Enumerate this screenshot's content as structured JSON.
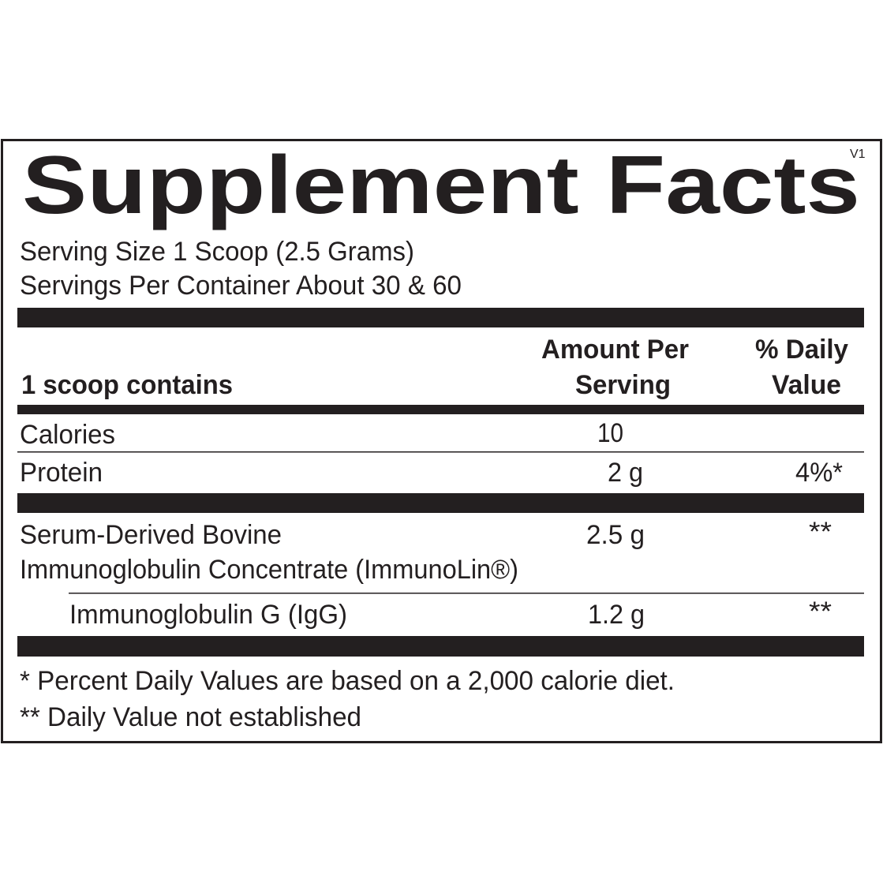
{
  "title": "Supplement Facts",
  "version": "V1",
  "serving": {
    "size": "Serving Size 1 Scoop (2.5 Grams)",
    "per_container": "Servings Per Container About 30 & 60"
  },
  "table": {
    "header": {
      "label": "1 scoop contains",
      "amount": [
        "Amount Per",
        "Serving"
      ],
      "daily_value": [
        "% Daily",
        "Value"
      ]
    },
    "rows": [
      {
        "name": [
          "Calories"
        ],
        "amount": "10"
      },
      {
        "name": [
          "Protein"
        ],
        "amount": "2 g",
        "daily_value": "4%*"
      },
      {
        "name": [
          "Serum-Derived Bovine",
          "Immunoglobulin Concentrate (ImmunoLin®)"
        ],
        "amount": "2.5 g",
        "daily_value": "**"
      },
      {
        "name": [
          "Immunoglobulin G (IgG)"
        ],
        "amount": "1.2 g",
        "daily_value": "**"
      }
    ]
  },
  "footnotes": [
    "* Percent Daily Values are based on a 2,000 calorie diet.",
    "** Daily Value not established"
  ]
}
